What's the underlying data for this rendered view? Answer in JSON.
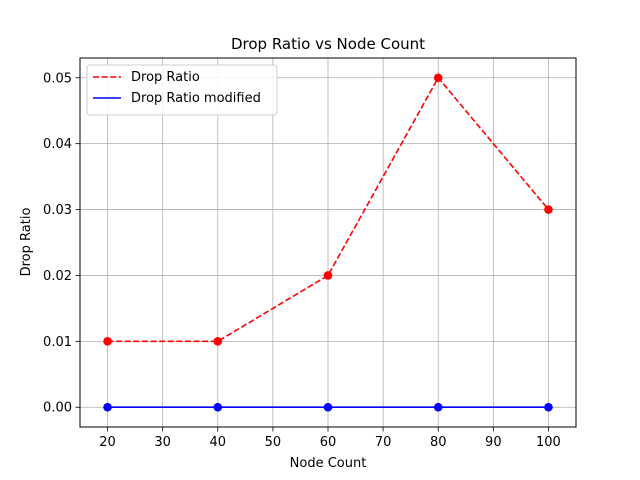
{
  "chart_data": {
    "type": "line",
    "title": "Drop Ratio vs Node Count",
    "xlabel": "Node Count",
    "ylabel": "Drop Ratio",
    "x": [
      20,
      40,
      60,
      80,
      100
    ],
    "xlim": [
      15,
      105
    ],
    "ylim": [
      -0.003,
      0.053
    ],
    "xticks": [
      20,
      30,
      40,
      50,
      60,
      70,
      80,
      90,
      100
    ],
    "yticks": [
      0.0,
      0.01,
      0.02,
      0.03,
      0.04,
      0.05
    ],
    "ytick_labels": [
      "0.00",
      "0.01",
      "0.02",
      "0.03",
      "0.04",
      "0.05"
    ],
    "grid": true,
    "legend_position": "top-left",
    "series": [
      {
        "name": "Drop Ratio",
        "values": [
          0.01,
          0.01,
          0.02,
          0.05,
          0.03
        ],
        "color": "#ff0000",
        "line_style": "dashed",
        "markers": true
      },
      {
        "name": "Drop Ratio modified",
        "values": [
          0.0,
          0.0,
          0.0,
          0.0,
          0.0
        ],
        "color": "#0000ff",
        "line_style": "solid",
        "markers": true
      }
    ]
  }
}
